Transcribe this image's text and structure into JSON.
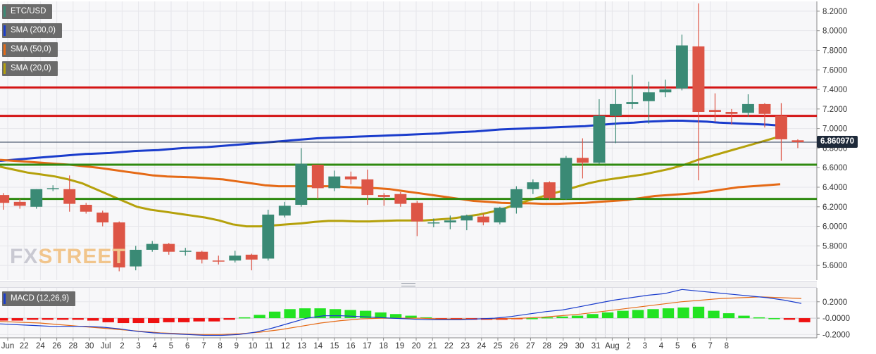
{
  "legend": {
    "symbol": "ETC/USD",
    "sma200": "SMA (200,0)",
    "sma50": "SMA (50,0)",
    "sma20": "SMA (20,0)",
    "macd": "MACD (12,26,9)"
  },
  "watermark": {
    "part1": "FX",
    "part2": "STREET"
  },
  "last_price_label": "6.860970",
  "colors": {
    "up": "#3a8a75",
    "down": "#dd5546",
    "sma200": "#1a3ccc",
    "sma50": "#e56a16",
    "sma20": "#b5a10b",
    "resistance": "#d41414",
    "support": "#2f8a10",
    "macd_line": "#1a3ccc",
    "signal_line": "#e56a16",
    "hist_pos": "#22e322",
    "hist_neg": "#ee1111"
  },
  "chart_data": [
    {
      "type": "candlestick",
      "ylim": [
        5.45,
        8.3
      ],
      "yticks": [
        "8.2000",
        "8.0000",
        "7.8000",
        "7.6000",
        "7.4000",
        "7.2000",
        "7.0000",
        "6.8000",
        "6.6000",
        "6.4000",
        "6.2000",
        "6.0000",
        "5.8000",
        "5.6000"
      ],
      "x_labels": [
        "Jun",
        "22",
        "24",
        "26",
        "28",
        "30",
        "Jul",
        "2",
        "3",
        "4",
        "5",
        "6",
        "7",
        "8",
        "9",
        "10",
        "11",
        "12",
        "13",
        "14",
        "15",
        "16",
        "17",
        "18",
        "19",
        "20",
        "21",
        "22",
        "23",
        "24",
        "25",
        "26",
        "27",
        "28",
        "29",
        "30",
        "31",
        "Aug",
        "2",
        "3",
        "4",
        "5",
        "6",
        "7",
        "8"
      ],
      "candles": [
        {
          "o": 6.32,
          "h": 6.34,
          "l": 6.17,
          "c": 6.24
        },
        {
          "o": 6.25,
          "h": 6.28,
          "l": 6.18,
          "c": 6.21
        },
        {
          "o": 6.2,
          "h": 6.38,
          "l": 6.18,
          "c": 6.38
        },
        {
          "o": 6.39,
          "h": 6.42,
          "l": 6.36,
          "c": 6.39
        },
        {
          "o": 6.38,
          "h": 6.52,
          "l": 6.15,
          "c": 6.23
        },
        {
          "o": 6.22,
          "h": 6.24,
          "l": 6.13,
          "c": 6.15
        },
        {
          "o": 6.14,
          "h": 6.16,
          "l": 6.0,
          "c": 6.04
        },
        {
          "o": 6.04,
          "h": 6.05,
          "l": 5.54,
          "c": 5.58
        },
        {
          "o": 5.59,
          "h": 5.8,
          "l": 5.55,
          "c": 5.76
        },
        {
          "o": 5.76,
          "h": 5.85,
          "l": 5.74,
          "c": 5.82
        },
        {
          "o": 5.82,
          "h": 5.83,
          "l": 5.71,
          "c": 5.74
        },
        {
          "o": 5.75,
          "h": 5.78,
          "l": 5.7,
          "c": 5.75
        },
        {
          "o": 5.74,
          "h": 5.75,
          "l": 5.62,
          "c": 5.66
        },
        {
          "o": 5.65,
          "h": 5.7,
          "l": 5.61,
          "c": 5.64
        },
        {
          "o": 5.65,
          "h": 5.75,
          "l": 5.63,
          "c": 5.7
        },
        {
          "o": 5.71,
          "h": 5.72,
          "l": 5.55,
          "c": 5.66
        },
        {
          "o": 5.67,
          "h": 6.17,
          "l": 5.65,
          "c": 6.12
        },
        {
          "o": 6.11,
          "h": 6.25,
          "l": 6.09,
          "c": 6.21
        },
        {
          "o": 6.22,
          "h": 6.8,
          "l": 6.2,
          "c": 6.64
        },
        {
          "o": 6.63,
          "h": 6.63,
          "l": 6.28,
          "c": 6.39
        },
        {
          "o": 6.39,
          "h": 6.57,
          "l": 6.36,
          "c": 6.51
        },
        {
          "o": 6.51,
          "h": 6.56,
          "l": 6.43,
          "c": 6.48
        },
        {
          "o": 6.48,
          "h": 6.58,
          "l": 6.22,
          "c": 6.32
        },
        {
          "o": 6.32,
          "h": 6.34,
          "l": 6.21,
          "c": 6.3
        },
        {
          "o": 6.33,
          "h": 6.35,
          "l": 6.2,
          "c": 6.23
        },
        {
          "o": 6.24,
          "h": 6.26,
          "l": 5.9,
          "c": 6.05
        },
        {
          "o": 6.04,
          "h": 6.08,
          "l": 5.99,
          "c": 6.04
        },
        {
          "o": 6.04,
          "h": 6.11,
          "l": 5.97,
          "c": 6.06
        },
        {
          "o": 6.06,
          "h": 6.12,
          "l": 5.96,
          "c": 6.11
        },
        {
          "o": 6.1,
          "h": 6.13,
          "l": 6.01,
          "c": 6.04
        },
        {
          "o": 6.04,
          "h": 6.2,
          "l": 6.02,
          "c": 6.19
        },
        {
          "o": 6.19,
          "h": 6.41,
          "l": 6.13,
          "c": 6.38
        },
        {
          "o": 6.38,
          "h": 6.48,
          "l": 6.33,
          "c": 6.45
        },
        {
          "o": 6.45,
          "h": 6.46,
          "l": 6.27,
          "c": 6.29
        },
        {
          "o": 6.28,
          "h": 6.72,
          "l": 6.27,
          "c": 6.7
        },
        {
          "o": 6.7,
          "h": 6.9,
          "l": 6.49,
          "c": 6.65
        },
        {
          "o": 6.65,
          "h": 7.3,
          "l": 6.64,
          "c": 7.13
        },
        {
          "o": 7.13,
          "h": 7.4,
          "l": 6.85,
          "c": 7.25
        },
        {
          "o": 7.25,
          "h": 7.55,
          "l": 7.2,
          "c": 7.27
        },
        {
          "o": 7.28,
          "h": 7.48,
          "l": 7.05,
          "c": 7.37
        },
        {
          "o": 7.37,
          "h": 7.5,
          "l": 7.32,
          "c": 7.4
        },
        {
          "o": 7.41,
          "h": 7.96,
          "l": 7.39,
          "c": 7.85
        },
        {
          "o": 7.84,
          "h": 8.28,
          "l": 6.47,
          "c": 7.17
        },
        {
          "o": 7.19,
          "h": 7.36,
          "l": 7.07,
          "c": 7.17
        },
        {
          "o": 7.17,
          "h": 7.2,
          "l": 7.04,
          "c": 7.15
        },
        {
          "o": 7.16,
          "h": 7.35,
          "l": 7.12,
          "c": 7.25
        },
        {
          "o": 7.25,
          "h": 7.26,
          "l": 7.01,
          "c": 7.15
        },
        {
          "o": 7.13,
          "h": 7.26,
          "l": 6.67,
          "c": 6.89
        },
        {
          "o": 6.88,
          "h": 6.89,
          "l": 6.8,
          "c": 6.86
        }
      ],
      "series": [
        {
          "name": "SMA (200,0)",
          "values": [
            6.67,
            6.68,
            6.69,
            6.7,
            6.71,
            6.72,
            6.73,
            6.74,
            6.745,
            6.75,
            6.76,
            6.77,
            6.775,
            6.78,
            6.79,
            6.8,
            6.805,
            6.81,
            6.82,
            6.83,
            6.84,
            6.85,
            6.86,
            6.87,
            6.88,
            6.89,
            6.9,
            6.905,
            6.91,
            6.915,
            6.92,
            6.925,
            6.93,
            6.935,
            6.94,
            6.945,
            6.95,
            6.96,
            6.965,
            6.97,
            6.98,
            6.99,
            6.995,
            7.0,
            7.005,
            7.01,
            7.015,
            7.02,
            7.025,
            7.035,
            7.045,
            7.055,
            7.06,
            7.07,
            7.075,
            7.08,
            7.08,
            7.075,
            7.07,
            7.06,
            7.055,
            7.05,
            7.045,
            7.04,
            7.03
          ]
        },
        {
          "name": "SMA (50,0)",
          "values": [
            6.68,
            6.67,
            6.66,
            6.65,
            6.64,
            6.63,
            6.615,
            6.6,
            6.58,
            6.56,
            6.54,
            6.52,
            6.51,
            6.505,
            6.5,
            6.49,
            6.48,
            6.46,
            6.44,
            6.42,
            6.41,
            6.41,
            6.41,
            6.41,
            6.41,
            6.4,
            6.395,
            6.39,
            6.38,
            6.36,
            6.34,
            6.32,
            6.3,
            6.28,
            6.26,
            6.25,
            6.24,
            6.235,
            6.235,
            6.23,
            6.23,
            6.235,
            6.24,
            6.25,
            6.26,
            6.27,
            6.29,
            6.31,
            6.32,
            6.33,
            6.34,
            6.36,
            6.38,
            6.4,
            6.41,
            6.42,
            6.43
          ]
        },
        {
          "name": "SMA (20,0)",
          "values": [
            6.61,
            6.58,
            6.55,
            6.53,
            6.51,
            6.48,
            6.44,
            6.38,
            6.32,
            6.26,
            6.2,
            6.17,
            6.15,
            6.13,
            6.11,
            6.09,
            6.06,
            6.02,
            6.0,
            6.0,
            6.01,
            6.02,
            6.03,
            6.045,
            6.055,
            6.055,
            6.05,
            6.05,
            6.055,
            6.06,
            6.06,
            6.06,
            6.07,
            6.08,
            6.1,
            6.12,
            6.15,
            6.19,
            6.24,
            6.28,
            6.32,
            6.36,
            6.4,
            6.44,
            6.47,
            6.49,
            6.51,
            6.53,
            6.56,
            6.59,
            6.63,
            6.68,
            6.72,
            6.76,
            6.8,
            6.84,
            6.88,
            6.92
          ]
        }
      ],
      "horizontal_lines": [
        {
          "kind": "resistance",
          "value": 7.42
        },
        {
          "kind": "resistance",
          "value": 7.13
        },
        {
          "kind": "support",
          "value": 6.63
        },
        {
          "kind": "support",
          "value": 6.28
        },
        {
          "kind": "last-price",
          "value": 6.86097
        }
      ]
    },
    {
      "type": "macd",
      "ylim": [
        -0.24,
        0.37
      ],
      "yticks": [
        "0.2000",
        "-0.0000",
        "-0.2000"
      ],
      "histogram": [
        -0.03,
        -0.03,
        -0.02,
        -0.02,
        -0.02,
        -0.02,
        -0.03,
        -0.05,
        -0.06,
        -0.06,
        -0.06,
        -0.05,
        -0.05,
        -0.04,
        -0.04,
        -0.02,
        0.01,
        0.04,
        0.08,
        0.11,
        0.12,
        0.12,
        0.11,
        0.1,
        0.09,
        0.07,
        0.05,
        0.03,
        0.01,
        -0.01,
        -0.01,
        -0.02,
        -0.02,
        -0.02,
        -0.01,
        0.0,
        0.01,
        0.02,
        0.03,
        0.05,
        0.07,
        0.09,
        0.1,
        0.11,
        0.12,
        0.13,
        0.14,
        0.09,
        0.06,
        0.03,
        0.01,
        0.0,
        -0.02,
        -0.05
      ],
      "series": [
        {
          "name": "MACD",
          "values": [
            -0.07,
            -0.08,
            -0.09,
            -0.1,
            -0.1,
            -0.1,
            -0.11,
            -0.13,
            -0.16,
            -0.18,
            -0.19,
            -0.2,
            -0.21,
            -0.21,
            -0.2,
            -0.17,
            -0.12,
            -0.06,
            0.0,
            0.03,
            0.03,
            0.02,
            0.01,
            0.0,
            -0.01,
            -0.02,
            -0.02,
            -0.02,
            -0.01,
            0.0,
            0.02,
            0.05,
            0.08,
            0.1,
            0.14,
            0.18,
            0.22,
            0.25,
            0.28,
            0.3,
            0.35,
            0.33,
            0.31,
            0.29,
            0.27,
            0.25,
            0.22,
            0.18
          ]
        },
        {
          "name": "Signal",
          "values": [
            -0.04,
            -0.05,
            -0.06,
            -0.08,
            -0.1,
            -0.12,
            -0.14,
            -0.16,
            -0.18,
            -0.19,
            -0.2,
            -0.2,
            -0.19,
            -0.17,
            -0.14,
            -0.1,
            -0.06,
            -0.03,
            -0.01,
            0.0,
            0.0,
            0.0,
            -0.01,
            -0.01,
            -0.01,
            -0.01,
            0.0,
            0.01,
            0.03,
            0.05,
            0.08,
            0.11,
            0.14,
            0.17,
            0.2,
            0.22,
            0.24,
            0.25,
            0.26,
            0.25,
            0.24
          ]
        }
      ]
    }
  ]
}
